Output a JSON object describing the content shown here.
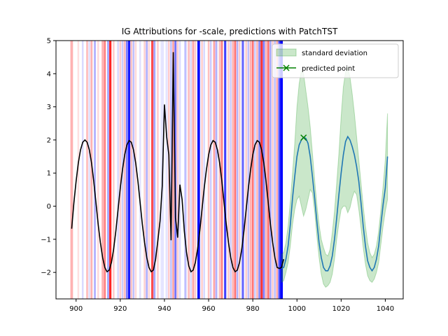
{
  "chart_data": {
    "type": "line",
    "title": "IG Attributions for -scale, predictions with PatchTST",
    "xlabel": "",
    "ylabel": "",
    "xlim": [
      890.9,
      1048.1
    ],
    "ylim": [
      -2.8,
      5.0
    ],
    "xticks": [
      900,
      920,
      940,
      960,
      980,
      1000,
      1020,
      1040
    ],
    "yticks": [
      -2,
      -1,
      0,
      1,
      2,
      3,
      4,
      5
    ],
    "grid": false,
    "legend_position": "top-right",
    "colors": {
      "history": "#000000",
      "prediction": "#1f77b4",
      "band": "#2ca02c",
      "marker": "#008000",
      "positive_attr": "#ff0000",
      "negative_attr": "#0000ff"
    },
    "legend": [
      {
        "label": "standard deviation",
        "kind": "band"
      },
      {
        "label": "predicted point",
        "kind": "marker"
      }
    ],
    "history": {
      "x": [
        898,
        899,
        900,
        901,
        902,
        903,
        904,
        905,
        906,
        907,
        908,
        909,
        910,
        911,
        912,
        913,
        914,
        915,
        916,
        917,
        918,
        919,
        920,
        921,
        922,
        923,
        924,
        925,
        926,
        927,
        928,
        929,
        930,
        931,
        932,
        933,
        934,
        935,
        936,
        937,
        938,
        939,
        940,
        941,
        942,
        943,
        944,
        945,
        946,
        947,
        948,
        949,
        950,
        951,
        952,
        953,
        954,
        955,
        956,
        957,
        958,
        959,
        960,
        961,
        962,
        963,
        964,
        965,
        966,
        967,
        968,
        969,
        970,
        971,
        972,
        973,
        974,
        975,
        976,
        977,
        978,
        979,
        980,
        981,
        982,
        983,
        984,
        985,
        986,
        987,
        988,
        989,
        990,
        991,
        992,
        993,
        994
      ],
      "y": [
        -0.68,
        0.1,
        0.75,
        1.3,
        1.7,
        1.93,
        2.0,
        1.93,
        1.7,
        1.3,
        0.75,
        0.1,
        -0.55,
        -1.1,
        -1.55,
        -1.85,
        -1.98,
        -1.93,
        -1.7,
        -1.3,
        -0.75,
        -0.1,
        0.55,
        1.1,
        1.55,
        1.85,
        1.98,
        1.93,
        1.7,
        1.3,
        0.75,
        0.1,
        -0.55,
        -1.1,
        -1.55,
        -1.85,
        -1.98,
        -1.93,
        -1.6,
        -1.05,
        -0.45,
        0.6,
        3.07,
        2.1,
        1.55,
        -1.03,
        4.65,
        -0.35,
        -0.95,
        0.65,
        0.2,
        -0.75,
        -1.4,
        -1.8,
        -1.98,
        -1.93,
        -1.7,
        -1.3,
        -0.75,
        -0.1,
        0.55,
        1.1,
        1.55,
        1.85,
        1.98,
        1.93,
        1.7,
        1.3,
        0.75,
        0.1,
        -0.55,
        -1.1,
        -1.55,
        -1.85,
        -1.98,
        -1.93,
        -1.7,
        -1.3,
        -0.75,
        -0.1,
        0.55,
        1.1,
        1.55,
        1.85,
        1.98,
        1.93,
        1.7,
        1.3,
        0.75,
        0.1,
        -0.55,
        -1.1,
        -1.55,
        -1.85,
        -1.88,
        -1.85,
        -1.6
      ]
    },
    "prediction": {
      "x": [
        993,
        994,
        995,
        996,
        997,
        998,
        999,
        1000,
        1001,
        1002,
        1003,
        1004,
        1005,
        1006,
        1007,
        1008,
        1009,
        1010,
        1011,
        1012,
        1013,
        1014,
        1015,
        1016,
        1017,
        1018,
        1019,
        1020,
        1021,
        1022,
        1023,
        1024,
        1025,
        1026,
        1027,
        1028,
        1029,
        1030,
        1031,
        1032,
        1033,
        1034,
        1035,
        1036,
        1037,
        1038,
        1039,
        1040,
        1041
      ],
      "y": [
        -1.88,
        -1.85,
        -1.6,
        -1.2,
        -0.55,
        0.25,
        0.9,
        1.5,
        1.85,
        2.0,
        2.08,
        2.05,
        1.9,
        1.5,
        0.9,
        0.25,
        -0.45,
        -1.1,
        -1.55,
        -1.85,
        -1.95,
        -1.95,
        -1.8,
        -1.5,
        -1.0,
        -0.35,
        0.35,
        1.0,
        1.55,
        1.95,
        2.1,
        2.0,
        1.8,
        1.55,
        1.2,
        0.75,
        0.1,
        -0.6,
        -1.2,
        -1.65,
        -1.85,
        -1.95,
        -1.85,
        -1.6,
        -1.2,
        -0.55,
        0.05,
        0.55,
        1.5
      ],
      "lower": [
        -2.3,
        -2.25,
        -2.0,
        -1.7,
        -1.2,
        -0.55,
        -0.1,
        0.2,
        0.3,
        0.0,
        -0.3,
        -0.1,
        0.2,
        0.5,
        0.4,
        -0.15,
        -0.9,
        -1.55,
        -2.05,
        -2.35,
        -2.45,
        -2.4,
        -2.3,
        -2.05,
        -1.6,
        -1.0,
        -0.5,
        -0.1,
        0.0,
        0.0,
        -0.2,
        -0.05,
        0.25,
        0.45,
        0.35,
        -0.1,
        -0.65,
        -1.25,
        -1.75,
        -2.1,
        -2.25,
        -2.3,
        -2.2,
        -2.0,
        -1.7,
        -1.15,
        -0.6,
        -0.15,
        0.2
      ],
      "upper": [
        -1.45,
        -1.4,
        -1.1,
        -0.6,
        0.15,
        1.0,
        1.9,
        3.0,
        3.7,
        4.1,
        4.0,
        3.5,
        3.0,
        2.4,
        1.6,
        0.8,
        0.05,
        -0.55,
        -1.0,
        -1.25,
        -1.45,
        -1.5,
        -1.3,
        -0.8,
        -0.15,
        0.7,
        1.6,
        2.7,
        3.6,
        4.05,
        4.2,
        3.9,
        3.4,
        2.8,
        2.1,
        1.4,
        0.7,
        0.0,
        -0.6,
        -1.1,
        -1.4,
        -1.55,
        -1.45,
        -1.2,
        -0.75,
        -0.1,
        0.6,
        1.4,
        2.8
      ]
    },
    "predicted_point": {
      "x": 1003,
      "y": 2.07
    },
    "attributions": [
      {
        "x": 898,
        "color": "#ff0000",
        "alpha": 0.3,
        "w": 1.2
      },
      {
        "x": 901,
        "color": "#ff0000",
        "alpha": 0.12,
        "w": 0.8
      },
      {
        "x": 903,
        "color": "#0000ff",
        "alpha": 0.15,
        "w": 0.8
      },
      {
        "x": 905,
        "color": "#ff0000",
        "alpha": 0.25,
        "w": 0.9
      },
      {
        "x": 906,
        "color": "#0000ff",
        "alpha": 0.12,
        "w": 0.8
      },
      {
        "x": 907,
        "color": "#ff0000",
        "alpha": 0.3,
        "w": 0.9
      },
      {
        "x": 908.5,
        "color": "#0000ff",
        "alpha": 0.3,
        "w": 0.9
      },
      {
        "x": 910,
        "color": "#ff0000",
        "alpha": 0.15,
        "w": 0.8
      },
      {
        "x": 912,
        "color": "#ff0000",
        "alpha": 0.3,
        "w": 0.9
      },
      {
        "x": 913,
        "color": "#ff0000",
        "alpha": 0.5,
        "w": 0.9
      },
      {
        "x": 914.5,
        "color": "#0000ff",
        "alpha": 0.35,
        "w": 0.9
      },
      {
        "x": 915.5,
        "color": "#ff0000",
        "alpha": 0.85,
        "w": 1.0
      },
      {
        "x": 917,
        "color": "#ff0000",
        "alpha": 0.2,
        "w": 0.8
      },
      {
        "x": 919,
        "color": "#0000ff",
        "alpha": 0.15,
        "w": 0.8
      },
      {
        "x": 920,
        "color": "#ff0000",
        "alpha": 0.2,
        "w": 0.8
      },
      {
        "x": 921,
        "color": "#0000ff",
        "alpha": 0.2,
        "w": 0.8
      },
      {
        "x": 922,
        "color": "#ff0000",
        "alpha": 0.25,
        "w": 0.9
      },
      {
        "x": 923,
        "color": "#0000ff",
        "alpha": 0.5,
        "w": 0.9
      },
      {
        "x": 924,
        "color": "#0000ff",
        "alpha": 0.9,
        "w": 1.0
      },
      {
        "x": 925,
        "color": "#ff0000",
        "alpha": 0.25,
        "w": 0.8
      },
      {
        "x": 926,
        "color": "#0000ff",
        "alpha": 0.25,
        "w": 0.8
      },
      {
        "x": 927,
        "color": "#ff0000",
        "alpha": 0.15,
        "w": 0.8
      },
      {
        "x": 929,
        "color": "#0000ff",
        "alpha": 0.12,
        "w": 0.8
      },
      {
        "x": 931,
        "color": "#ff0000",
        "alpha": 0.18,
        "w": 0.8
      },
      {
        "x": 932,
        "color": "#0000ff",
        "alpha": 0.3,
        "w": 0.9
      },
      {
        "x": 933,
        "color": "#ff0000",
        "alpha": 0.15,
        "w": 0.8
      },
      {
        "x": 934.5,
        "color": "#ff0000",
        "alpha": 0.7,
        "w": 1.0
      },
      {
        "x": 935.5,
        "color": "#0000ff",
        "alpha": 0.35,
        "w": 0.9
      },
      {
        "x": 937,
        "color": "#ff0000",
        "alpha": 0.2,
        "w": 0.8
      },
      {
        "x": 939,
        "color": "#0000ff",
        "alpha": 0.1,
        "w": 1.5
      },
      {
        "x": 941,
        "color": "#0000ff",
        "alpha": 0.1,
        "w": 1.0
      },
      {
        "x": 942,
        "color": "#ff0000",
        "alpha": 0.2,
        "w": 0.8
      },
      {
        "x": 943,
        "color": "#0000ff",
        "alpha": 0.25,
        "w": 0.8
      },
      {
        "x": 944,
        "color": "#ff0000",
        "alpha": 0.35,
        "w": 0.9
      },
      {
        "x": 945,
        "color": "#0000ff",
        "alpha": 0.55,
        "w": 0.9
      },
      {
        "x": 946,
        "color": "#ff0000",
        "alpha": 0.2,
        "w": 0.8
      },
      {
        "x": 947,
        "color": "#0000ff",
        "alpha": 0.15,
        "w": 0.8
      },
      {
        "x": 949.5,
        "color": "#0000ff",
        "alpha": 0.25,
        "w": 1.0
      },
      {
        "x": 951,
        "color": "#ff0000",
        "alpha": 0.25,
        "w": 0.9
      },
      {
        "x": 952,
        "color": "#0000ff",
        "alpha": 0.15,
        "w": 0.8
      },
      {
        "x": 953,
        "color": "#ff0000",
        "alpha": 0.35,
        "w": 0.9
      },
      {
        "x": 954,
        "color": "#ff0000",
        "alpha": 0.2,
        "w": 0.8
      },
      {
        "x": 955.5,
        "color": "#0000ff",
        "alpha": 0.95,
        "w": 1.2
      },
      {
        "x": 957,
        "color": "#ff0000",
        "alpha": 0.2,
        "w": 0.8
      },
      {
        "x": 958,
        "color": "#0000ff",
        "alpha": 0.15,
        "w": 0.8
      },
      {
        "x": 960,
        "color": "#ff0000",
        "alpha": 0.25,
        "w": 0.8
      },
      {
        "x": 961,
        "color": "#0000ff",
        "alpha": 0.2,
        "w": 0.8
      },
      {
        "x": 962.5,
        "color": "#ff0000",
        "alpha": 0.35,
        "w": 0.9
      },
      {
        "x": 963.5,
        "color": "#0000ff",
        "alpha": 0.3,
        "w": 0.9
      },
      {
        "x": 965,
        "color": "#ff0000",
        "alpha": 0.25,
        "w": 0.8
      },
      {
        "x": 966,
        "color": "#ff0000",
        "alpha": 0.5,
        "w": 0.9
      },
      {
        "x": 967.5,
        "color": "#0000ff",
        "alpha": 0.75,
        "w": 1.0
      },
      {
        "x": 969,
        "color": "#ff0000",
        "alpha": 0.2,
        "w": 0.8
      },
      {
        "x": 970,
        "color": "#0000ff",
        "alpha": 0.2,
        "w": 0.8
      },
      {
        "x": 971,
        "color": "#ff0000",
        "alpha": 0.3,
        "w": 0.8
      },
      {
        "x": 972,
        "color": "#ff0000",
        "alpha": 0.55,
        "w": 0.9
      },
      {
        "x": 973,
        "color": "#0000ff",
        "alpha": 0.3,
        "w": 0.8
      },
      {
        "x": 974,
        "color": "#ff0000",
        "alpha": 0.2,
        "w": 0.8
      },
      {
        "x": 975.5,
        "color": "#0000ff",
        "alpha": 0.6,
        "w": 1.0
      },
      {
        "x": 977,
        "color": "#ff0000",
        "alpha": 0.2,
        "w": 0.8
      },
      {
        "x": 978,
        "color": "#0000ff",
        "alpha": 0.25,
        "w": 0.8
      },
      {
        "x": 979,
        "color": "#ff0000",
        "alpha": 0.3,
        "w": 0.8
      },
      {
        "x": 980,
        "color": "#ff0000",
        "alpha": 0.55,
        "w": 0.9
      },
      {
        "x": 981,
        "color": "#0000ff",
        "alpha": 0.2,
        "w": 0.8
      },
      {
        "x": 982,
        "color": "#ff0000",
        "alpha": 0.3,
        "w": 0.8
      },
      {
        "x": 983,
        "color": "#0000ff",
        "alpha": 0.45,
        "w": 0.9
      },
      {
        "x": 984,
        "color": "#ff0000",
        "alpha": 0.8,
        "w": 1.0
      },
      {
        "x": 985,
        "color": "#0000ff",
        "alpha": 0.5,
        "w": 0.9
      },
      {
        "x": 986,
        "color": "#ff0000",
        "alpha": 0.3,
        "w": 0.8
      },
      {
        "x": 987,
        "color": "#ff0000",
        "alpha": 0.55,
        "w": 0.9
      },
      {
        "x": 988,
        "color": "#0000ff",
        "alpha": 0.35,
        "w": 0.8
      },
      {
        "x": 989,
        "color": "#ff0000",
        "alpha": 0.2,
        "w": 0.8
      },
      {
        "x": 990,
        "color": "#0000ff",
        "alpha": 0.25,
        "w": 0.8
      },
      {
        "x": 991,
        "color": "#ff0000",
        "alpha": 0.35,
        "w": 0.8
      },
      {
        "x": 992,
        "color": "#0000ff",
        "alpha": 0.7,
        "w": 0.9
      },
      {
        "x": 993,
        "color": "#0000ff",
        "alpha": 1.0,
        "w": 1.2
      }
    ]
  }
}
